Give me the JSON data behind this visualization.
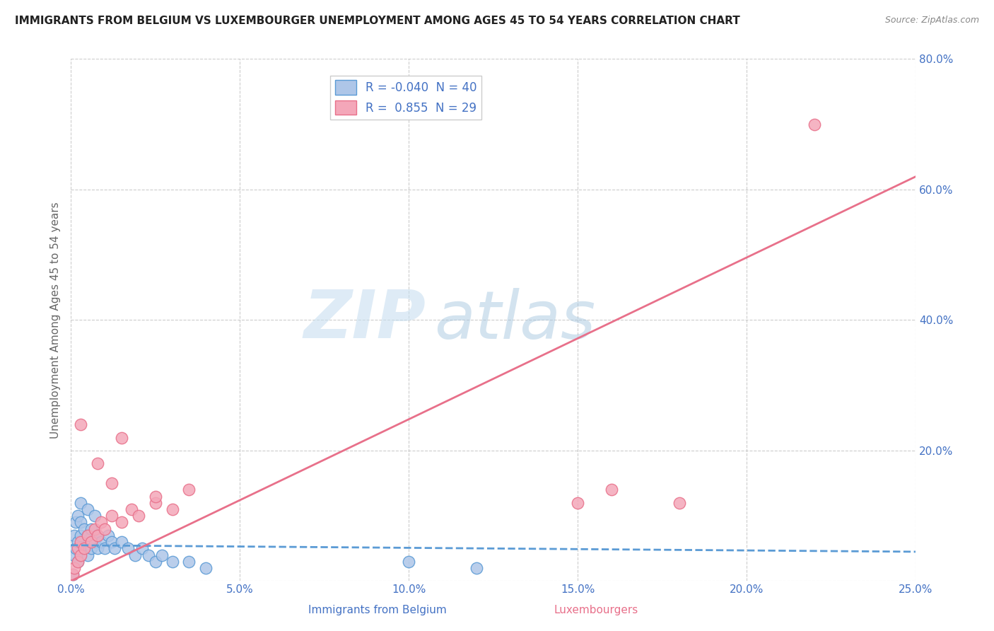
{
  "title": "IMMIGRANTS FROM BELGIUM VS LUXEMBOURGER UNEMPLOYMENT AMONG AGES 45 TO 54 YEARS CORRELATION CHART",
  "source": "Source: ZipAtlas.com",
  "ylabel": "Unemployment Among Ages 45 to 54 years",
  "xlabel_belgium": "Immigrants from Belgium",
  "xlabel_luxembourgers": "Luxembourgers",
  "watermark_zip": "ZIP",
  "watermark_atlas": "atlas",
  "legend_R_belgium": "-0.040",
  "legend_N_belgium": "40",
  "legend_R_luxembourg": "0.855",
  "legend_N_luxembourg": "29",
  "xlim": [
    0.0,
    0.25
  ],
  "ylim": [
    0.0,
    0.8
  ],
  "xticks": [
    0.0,
    0.05,
    0.1,
    0.15,
    0.2,
    0.25
  ],
  "yticks": [
    0.0,
    0.2,
    0.4,
    0.6,
    0.8
  ],
  "ytick_labels": [
    "",
    "20.0%",
    "40.0%",
    "60.0%",
    "80.0%"
  ],
  "xtick_labels": [
    "0.0%",
    "5.0%",
    "10.0%",
    "15.0%",
    "20.0%",
    "25.0%"
  ],
  "color_belgium": "#aec6e8",
  "color_belgium_edge": "#5b9bd5",
  "color_luxembourg": "#f4a7b9",
  "color_luxembourg_edge": "#e8708a",
  "color_belgium_line": "#5b9bd5",
  "color_luxembourg_line": "#e8708a",
  "title_color": "#222222",
  "axis_label_color": "#4472c4",
  "grid_color": "#c0c0c0",
  "background_color": "#ffffff",
  "belgium_scatter_x": [
    0.0005,
    0.001,
    0.001,
    0.0015,
    0.0015,
    0.002,
    0.002,
    0.002,
    0.003,
    0.003,
    0.003,
    0.003,
    0.004,
    0.004,
    0.005,
    0.005,
    0.005,
    0.006,
    0.006,
    0.007,
    0.007,
    0.008,
    0.008,
    0.009,
    0.01,
    0.011,
    0.012,
    0.013,
    0.015,
    0.017,
    0.019,
    0.021,
    0.023,
    0.025,
    0.027,
    0.03,
    0.035,
    0.04,
    0.1,
    0.12
  ],
  "belgium_scatter_y": [
    0.01,
    0.04,
    0.07,
    0.05,
    0.09,
    0.03,
    0.06,
    0.1,
    0.04,
    0.07,
    0.09,
    0.12,
    0.05,
    0.08,
    0.04,
    0.07,
    0.11,
    0.05,
    0.08,
    0.06,
    0.1,
    0.05,
    0.07,
    0.06,
    0.05,
    0.07,
    0.06,
    0.05,
    0.06,
    0.05,
    0.04,
    0.05,
    0.04,
    0.03,
    0.04,
    0.03,
    0.03,
    0.02,
    0.03,
    0.02
  ],
  "luxembourg_scatter_x": [
    0.0005,
    0.001,
    0.002,
    0.002,
    0.003,
    0.003,
    0.004,
    0.005,
    0.006,
    0.007,
    0.008,
    0.009,
    0.01,
    0.012,
    0.015,
    0.018,
    0.02,
    0.025,
    0.03,
    0.035,
    0.003,
    0.008,
    0.012,
    0.15,
    0.16,
    0.18,
    0.015,
    0.025,
    0.22
  ],
  "luxembourg_scatter_y": [
    0.01,
    0.02,
    0.03,
    0.05,
    0.04,
    0.06,
    0.05,
    0.07,
    0.06,
    0.08,
    0.07,
    0.09,
    0.08,
    0.1,
    0.09,
    0.11,
    0.1,
    0.12,
    0.11,
    0.14,
    0.24,
    0.18,
    0.15,
    0.12,
    0.14,
    0.12,
    0.22,
    0.13,
    0.7
  ],
  "belgium_trend": [
    -0.05,
    0.05
  ],
  "luxembourg_trend_x": [
    0.0,
    0.25
  ],
  "luxembourg_trend_y": [
    0.0,
    0.62
  ]
}
